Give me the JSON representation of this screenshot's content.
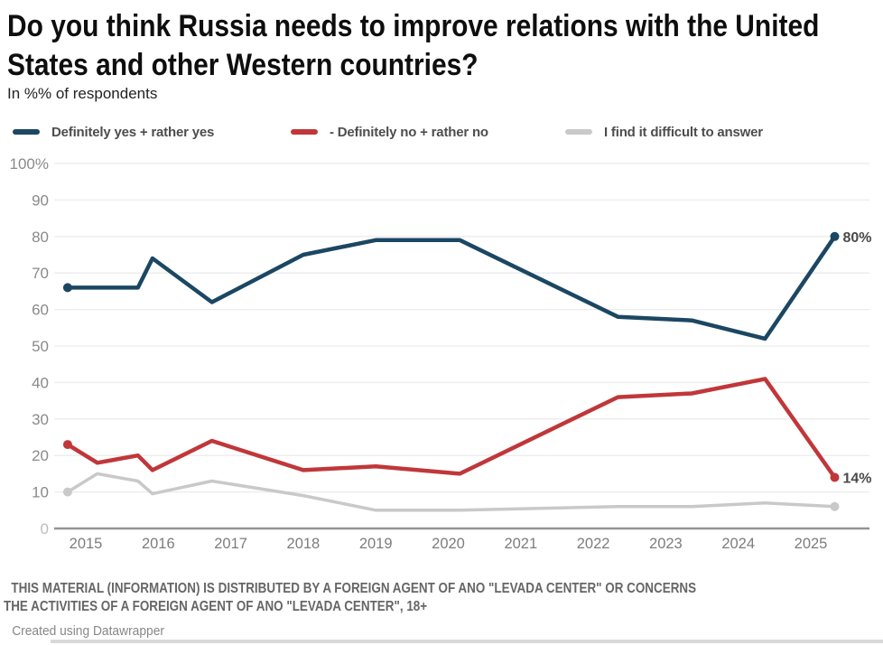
{
  "header": {
    "title": "Do you think Russia needs to improve relations with the United States and other Western countries?",
    "subtitle": "In %% of respondents"
  },
  "legend": {
    "items": [
      {
        "label": "Definitely yes + rather yes",
        "color": "#1b4763"
      },
      {
        "label": "- Definitely no + rather no",
        "color": "#c0373a"
      },
      {
        "label": "I find it difficult to answer",
        "color": "#c9c9c9"
      }
    ]
  },
  "chart_data": {
    "type": "line",
    "title": "Do you think Russia needs to improve relations with the United States and other Western countries?",
    "subtitle": "In %% of respondents",
    "xlabel": "",
    "ylabel": "",
    "grid": "horizontal",
    "legend_position": "top",
    "xlim": [
      2014.55,
      2025.95
    ],
    "ylim": [
      0,
      100
    ],
    "x_ticks": [
      2015,
      2016,
      2017,
      2018,
      2019,
      2020,
      2021,
      2022,
      2023,
      2024,
      2025
    ],
    "y_ticks": [
      {
        "label": "100%",
        "value": 100
      },
      {
        "label": "90",
        "value": 90
      },
      {
        "label": "80",
        "value": 80
      },
      {
        "label": "70",
        "value": 70
      },
      {
        "label": "60",
        "value": 60
      },
      {
        "label": "50",
        "value": 50
      },
      {
        "label": "40",
        "value": 40
      },
      {
        "label": "30",
        "value": 30
      },
      {
        "label": "20",
        "value": 20
      },
      {
        "label": "10",
        "value": 10
      },
      {
        "label": "0",
        "value": 0
      }
    ],
    "series": [
      {
        "name": "Definitely yes + rather yes",
        "color": "#1b4763",
        "stroke_width": 4.5,
        "end_label": "80%",
        "points": [
          [
            2014.75,
            66
          ],
          [
            2015.16,
            66
          ],
          [
            2015.72,
            66
          ],
          [
            2015.92,
            74
          ],
          [
            2016.74,
            62
          ],
          [
            2018.0,
            75
          ],
          [
            2019.0,
            79
          ],
          [
            2020.16,
            79
          ],
          [
            2022.34,
            58
          ],
          [
            2023.36,
            57
          ],
          [
            2024.37,
            52
          ],
          [
            2025.33,
            80
          ]
        ]
      },
      {
        "name": "- Definitely no + rather no",
        "color": "#c0373a",
        "stroke_width": 4.5,
        "end_label": "14%",
        "points": [
          [
            2014.75,
            23
          ],
          [
            2015.16,
            18
          ],
          [
            2015.72,
            20
          ],
          [
            2015.92,
            16
          ],
          [
            2016.74,
            24
          ],
          [
            2018.0,
            16
          ],
          [
            2019.0,
            17
          ],
          [
            2020.16,
            15
          ],
          [
            2022.34,
            36
          ],
          [
            2023.36,
            37
          ],
          [
            2024.37,
            41
          ],
          [
            2025.33,
            14
          ]
        ]
      },
      {
        "name": "I find it difficult to answer",
        "color": "#c9c9c9",
        "stroke_width": 3.5,
        "end_label": "",
        "points": [
          [
            2014.75,
            10
          ],
          [
            2015.16,
            15
          ],
          [
            2015.72,
            13
          ],
          [
            2015.92,
            9.5
          ],
          [
            2016.74,
            13
          ],
          [
            2018.0,
            9
          ],
          [
            2019.0,
            5
          ],
          [
            2020.16,
            5
          ],
          [
            2022.34,
            6
          ],
          [
            2023.36,
            6
          ],
          [
            2024.37,
            7
          ],
          [
            2025.33,
            6
          ]
        ]
      }
    ],
    "value_label_color": "#4a4a4a",
    "grid_color": "#ececec",
    "axis_line_color": "#949494",
    "tick_label_color": "#8a8a8a"
  },
  "footer": {
    "disclaimer_line1": "THIS MATERIAL (INFORMATION) IS DISTRIBUTED BY A FOREIGN AGENT OF ANO \"LEVADA CENTER\" OR CONCERNS",
    "disclaimer_line2": "THE ACTIVITIES OF A FOREIGN AGENT OF ANO \"LEVADA CENTER\", 18+",
    "attribution": "Created using Datawrapper"
  }
}
